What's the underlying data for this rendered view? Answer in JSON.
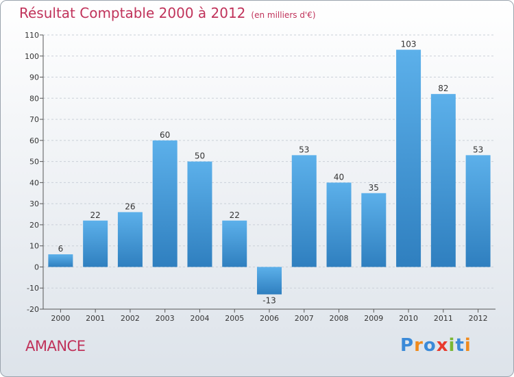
{
  "title": "Résultat Comptable 2000 à 2012",
  "subtitle": "(en milliers d'€)",
  "commune": "AMANCE",
  "logo": {
    "letters": [
      "P",
      "r",
      "o",
      "x",
      "i",
      "t",
      "i"
    ],
    "colors": [
      "#3b8ad8",
      "#f08a1c",
      "#3b8ad8",
      "#e83a2e",
      "#7ab733",
      "#3b8ad8",
      "#f08a1c"
    ]
  },
  "colors": {
    "bar_light": "#5cb0ea",
    "bar_dark": "#2f7fbf",
    "title": "#c0325a",
    "grid": "#c9d0d8"
  },
  "chart_data": {
    "type": "bar",
    "title": "Résultat Comptable 2000 à 2012",
    "subtitle": "(en milliers d'€)",
    "categories": [
      "2000",
      "2001",
      "2002",
      "2003",
      "2004",
      "2005",
      "2006",
      "2007",
      "2008",
      "2009",
      "2010",
      "2011",
      "2012"
    ],
    "values": [
      6,
      22,
      26,
      60,
      50,
      22,
      -13,
      53,
      40,
      35,
      103,
      82,
      53
    ],
    "ylim": [
      -20,
      110
    ],
    "yticks": [
      -20,
      -10,
      0,
      10,
      20,
      30,
      40,
      50,
      60,
      70,
      80,
      90,
      100,
      110
    ],
    "xlabel": "",
    "ylabel": "",
    "grid": "horizontal dashed"
  }
}
